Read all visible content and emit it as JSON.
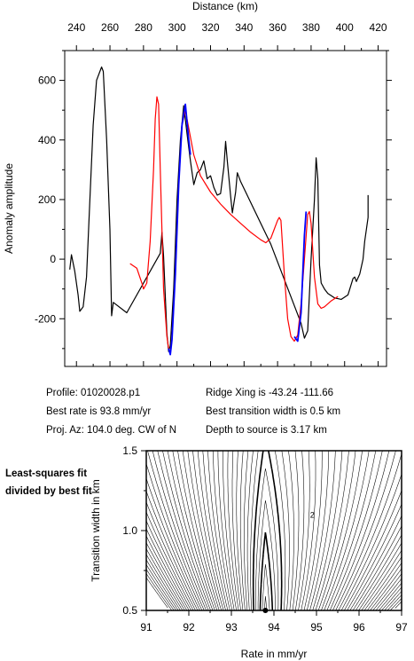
{
  "chart_data": [
    {
      "type": "line",
      "xlabel": "Distance (km)",
      "ylabel": "Anomaly amplitude",
      "xlim": [
        233,
        425
      ],
      "ylim": [
        -360,
        700
      ],
      "x_ticks": [
        240,
        260,
        280,
        300,
        320,
        340,
        360,
        380,
        400,
        420
      ],
      "y_ticks": [
        -200,
        0,
        200,
        400,
        600
      ],
      "series": [
        {
          "color": "#000000",
          "points": [
            [
              236,
              -35
            ],
            [
              237,
              15
            ],
            [
              239,
              -40
            ],
            [
              241,
              -120
            ],
            [
              242,
              -175
            ],
            [
              244,
              -160
            ],
            [
              246,
              -60
            ],
            [
              248,
              200
            ],
            [
              250,
              450
            ],
            [
              252,
              600
            ],
            [
              255,
              645
            ],
            [
              256,
              630
            ],
            [
              258,
              400
            ],
            [
              260,
              100
            ],
            [
              261,
              -190
            ],
            [
              262,
              -145
            ],
            [
              270,
              -180
            ],
            [
              290,
              20
            ],
            [
              291,
              90
            ],
            [
              292,
              10
            ],
            [
              294,
              -250
            ],
            [
              295,
              -310
            ],
            [
              296,
              -290
            ],
            [
              298,
              -100
            ],
            [
              300,
              200
            ],
            [
              302,
              400
            ],
            [
              304,
              515
            ],
            [
              306,
              420
            ],
            [
              308,
              330
            ],
            [
              310,
              250
            ],
            [
              312,
              290
            ],
            [
              314,
              300
            ],
            [
              316,
              330
            ],
            [
              318,
              270
            ],
            [
              320,
              280
            ],
            [
              322,
              240
            ],
            [
              324,
              215
            ],
            [
              326,
              220
            ],
            [
              328,
              310
            ],
            [
              329,
              395
            ],
            [
              330,
              330
            ],
            [
              332,
              210
            ],
            [
              333,
              155
            ],
            [
              335,
              225
            ],
            [
              336,
              290
            ],
            [
              338,
              260
            ],
            [
              356,
              50
            ],
            [
              374,
              -215
            ],
            [
              376,
              -265
            ],
            [
              378,
              -240
            ],
            [
              380,
              0
            ],
            [
              382,
              200
            ],
            [
              383,
              340
            ],
            [
              384,
              270
            ],
            [
              385,
              -20
            ],
            [
              386,
              -80
            ],
            [
              388,
              -100
            ],
            [
              390,
              -115
            ],
            [
              394,
              -130
            ],
            [
              398,
              -135
            ],
            [
              402,
              -120
            ],
            [
              405,
              -65
            ],
            [
              406,
              -60
            ],
            [
              407,
              -75
            ],
            [
              409,
              -50
            ],
            [
              411,
              0
            ],
            [
              412,
              60
            ],
            [
              414,
              140
            ],
            [
              414,
              215
            ]
          ]
        },
        {
          "color": "#ff0000",
          "points": [
            [
              272,
              -15
            ],
            [
              276,
              -30
            ],
            [
              279,
              -80
            ],
            [
              280,
              -100
            ],
            [
              282,
              -80
            ],
            [
              284,
              60
            ],
            [
              286,
              300
            ],
            [
              287,
              470
            ],
            [
              288,
              545
            ],
            [
              289,
              520
            ],
            [
              290,
              300
            ],
            [
              292,
              -100
            ],
            [
              294,
              -260
            ],
            [
              295,
              -300
            ],
            [
              296,
              -320
            ],
            [
              297,
              -270
            ],
            [
              299,
              -50
            ],
            [
              301,
              250
            ],
            [
              303,
              450
            ],
            [
              305,
              500
            ],
            [
              307,
              440
            ],
            [
              310,
              350
            ],
            [
              314,
              280
            ],
            [
              320,
              225
            ],
            [
              326,
              185
            ],
            [
              332,
              150
            ],
            [
              338,
              120
            ],
            [
              344,
              90
            ],
            [
              350,
              65
            ],
            [
              353,
              55
            ],
            [
              356,
              70
            ],
            [
              358,
              100
            ],
            [
              360,
              130
            ],
            [
              361,
              140
            ],
            [
              362,
              130
            ],
            [
              364,
              -50
            ],
            [
              366,
              -200
            ],
            [
              368,
              -260
            ],
            [
              370,
              -275
            ],
            [
              372,
              -255
            ],
            [
              374,
              -150
            ],
            [
              376,
              0
            ],
            [
              378,
              150
            ],
            [
              379,
              160
            ],
            [
              380,
              120
            ],
            [
              382,
              -60
            ],
            [
              384,
              -150
            ],
            [
              386,
              -165
            ],
            [
              388,
              -160
            ],
            [
              392,
              -140
            ],
            [
              396,
              -125
            ]
          ]
        },
        {
          "color": "#0000ff",
          "points": [
            [
              295,
              -300
            ],
            [
              296,
              -320
            ],
            [
              297,
              -270
            ],
            [
              299,
              -50
            ],
            [
              301,
              250
            ],
            [
              303,
              450
            ],
            [
              305,
              520
            ],
            [
              307,
              400
            ],
            [
              308,
              350
            ]
          ]
        },
        {
          "color": "#0000ff",
          "points": [
            [
              370,
              -260
            ],
            [
              372,
              -275
            ],
            [
              374,
              -180
            ],
            [
              376,
              80
            ],
            [
              377,
              160
            ]
          ]
        }
      ]
    },
    {
      "type": "contour",
      "xlabel": "Rate in mm/yr",
      "ylabel": "Transition width in km",
      "xlim": [
        91,
        97
      ],
      "ylim": [
        0.5,
        1.5
      ],
      "x_ticks": [
        91,
        92,
        93,
        94,
        95,
        96,
        97
      ],
      "y_ticks": [
        0.5,
        1.0,
        1.5
      ],
      "x_tick_labels": [
        "91",
        "92",
        "93",
        "94",
        "95",
        "96",
        "97"
      ],
      "y_tick_labels": [
        "0.5",
        "1.0",
        "1.5"
      ],
      "contour_label": "2",
      "minimum": {
        "x": 93.8,
        "y": 0.5
      }
    }
  ],
  "info": {
    "profile": "Profile: 01020028.p1",
    "best_rate": "Best rate is 93.8 mm/yr",
    "proj_az": "Proj. Az: 104.0 deg. CW of N",
    "ridge_xing": "Ridge Xing is -43.24 -111.66",
    "best_width": "Best transition width is 0.5 km",
    "depth": "Depth to source is   3.17 km"
  },
  "side_note": "Least-squares fit divided by best fit"
}
